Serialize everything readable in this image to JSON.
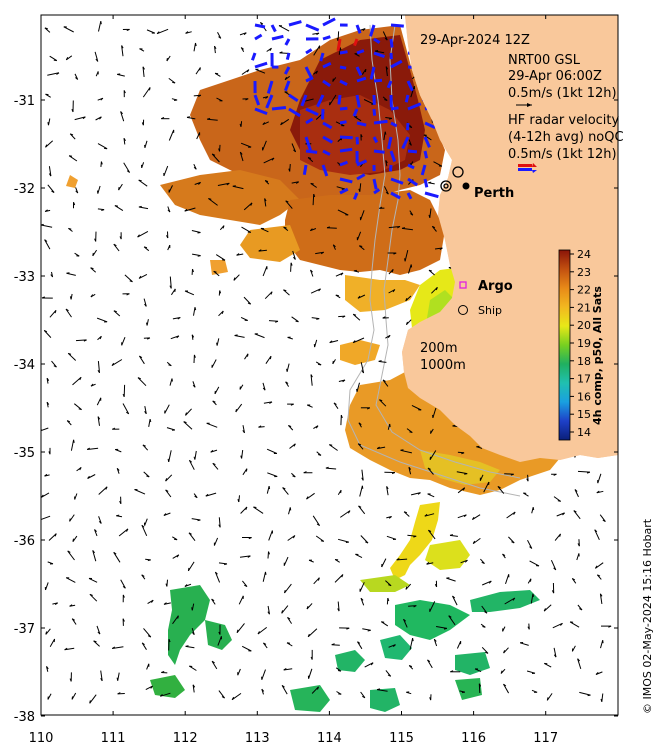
{
  "map": {
    "timestamp": "29-Apr-2024 12Z",
    "gsl_title": "NRT00 GSL",
    "gsl_time": "29-Apr 06:00Z",
    "gsl_scale": "0.5m/s (1kt 12h)",
    "radar_title": "HF radar velocity",
    "radar_sub": "(4-12h avg) noQC",
    "radar_scale": "0.5m/s (1kt 12h)",
    "city_label": "Perth",
    "argo_label": "Argo",
    "ship_label": "Ship",
    "contour_200": "200m",
    "contour_1000": "1000m",
    "credit": "© IMOS 02-May-2024 15:16 Hobart",
    "colorbar_label": "4h comp, p50, All Sats",
    "colorbar_ticks": [
      "24",
      "23",
      "22",
      "21",
      "20",
      "19",
      "18",
      "17",
      "16",
      "15",
      "14"
    ],
    "x_ticks": [
      "110",
      "111",
      "112",
      "113",
      "114",
      "115",
      "116",
      "117"
    ],
    "y_ticks": [
      "-31",
      "-32",
      "-33",
      "-34",
      "-35",
      "-36",
      "-37",
      "-38"
    ],
    "land_color": "#f9c89b",
    "radar_arrow_color": "#1a1aff",
    "radar_arrow_red": "#e01010",
    "argo_color": "#e020e0"
  }
}
